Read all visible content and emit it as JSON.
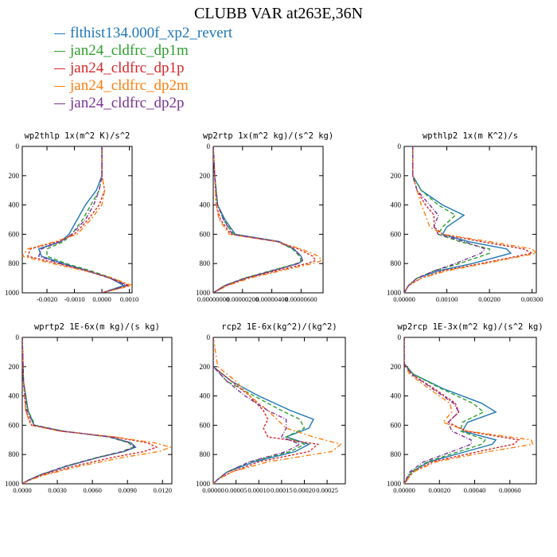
{
  "title": "CLUBB VAR at263E,36N",
  "legend": [
    {
      "name": "flthist134.000f_xp2_revert",
      "color": "#1f77b4"
    },
    {
      "name": "jan24_cldfrc_dp1m",
      "color": "#2ca02c"
    },
    {
      "name": "jan24_cldfrc_dp1p",
      "color": "#d62728"
    },
    {
      "name": "jan24_cldfrc_dp2m",
      "color": "#ff7f0e"
    },
    {
      "name": "jan24_cldfrc_dp2p",
      "color": "#7b3294"
    }
  ],
  "chart_data": [
    {
      "type": "line",
      "title": "wp2thlp  1x(m^2 K)/s^2",
      "xlim": [
        -0.0029,
        0.0011
      ],
      "ylim": [
        1000,
        0
      ],
      "y_inverted": true,
      "xticks": [
        -0.002,
        -0.001,
        0.0,
        0.001
      ],
      "xtick_labels": [
        "-0.0020",
        "-0.0010",
        "0.0000",
        "0.0010"
      ],
      "yticks": [
        0,
        200,
        400,
        600,
        800,
        1000
      ],
      "ytick_labels": [
        "0",
        "200",
        "400",
        "600",
        "800",
        "1000"
      ],
      "y": [
        0,
        200,
        300,
        400,
        500,
        600,
        650,
        700,
        750,
        800,
        850,
        900,
        950,
        1000
      ],
      "series": [
        {
          "name": "flthist134.000f_xp2_revert",
          "values": [
            0,
            0,
            -0.0002,
            -0.0006,
            -0.0009,
            -0.0012,
            -0.0015,
            -0.0023,
            -0.0022,
            -0.0014,
            -0.0005,
            0.0003,
            0.0008,
            0.0
          ]
        },
        {
          "name": "jan24_cldfrc_dp1m",
          "values": [
            0,
            0,
            -0.0001,
            -0.0004,
            -0.0007,
            -0.0011,
            -0.0014,
            -0.002,
            -0.002,
            -0.0013,
            -0.0004,
            0.0004,
            0.0009,
            0.0
          ]
        },
        {
          "name": "jan24_cldfrc_dp1p",
          "values": [
            0,
            0,
            0.0001,
            -0.0001,
            -0.0005,
            -0.001,
            -0.0016,
            -0.0026,
            -0.0027,
            -0.0016,
            -0.0006,
            0.0003,
            0.001,
            0.0
          ]
        },
        {
          "name": "jan24_cldfrc_dp2m",
          "values": [
            0,
            0,
            0.0001,
            0.0,
            -0.0004,
            -0.0009,
            -0.0017,
            -0.0027,
            -0.0029,
            -0.0018,
            -0.0006,
            0.0004,
            0.0011,
            0.0
          ]
        },
        {
          "name": "jan24_cldfrc_dp2p",
          "values": [
            0,
            0,
            -0.0001,
            -0.0003,
            -0.0006,
            -0.0011,
            -0.0015,
            -0.0022,
            -0.0023,
            -0.0015,
            -0.0005,
            0.0003,
            0.0009,
            0.0
          ]
        }
      ]
    },
    {
      "type": "line",
      "title": "wp2rtp  1x(m^2 kg)/(s^2 kg)",
      "xlim": [
        0,
        7.5e-06
      ],
      "ylim": [
        1000,
        0
      ],
      "y_inverted": true,
      "xticks": [
        0,
        2e-06,
        4e-06,
        6e-06
      ],
      "xtick_labels": [
        "0.00000000",
        "0.00000200",
        "0.00000400",
        "0.00000600"
      ],
      "yticks": [
        0,
        200,
        400,
        600,
        800,
        1000
      ],
      "ytick_labels": [
        "0",
        "200",
        "400",
        "600",
        "800",
        "1000"
      ],
      "y": [
        0,
        200,
        400,
        500,
        600,
        650,
        700,
        750,
        780,
        800,
        850,
        900,
        950,
        1000
      ],
      "series": [
        {
          "name": "flthist134.000f_xp2_revert",
          "values": [
            0,
            1e-07,
            3e-07,
            8e-07,
            1.5e-06,
            4.5e-06,
            5.5e-06,
            6e-06,
            6.1e-06,
            5.8e-06,
            4e-06,
            2.2e-06,
            8e-07,
            0.0
          ]
        },
        {
          "name": "jan24_cldfrc_dp1m",
          "values": [
            0,
            1e-07,
            3e-07,
            7e-07,
            1.4e-06,
            4.4e-06,
            5.4e-06,
            5.9e-06,
            6e-06,
            5.7e-06,
            3.9e-06,
            2.1e-06,
            8e-07,
            0.0
          ]
        },
        {
          "name": "jan24_cldfrc_dp1p",
          "values": [
            0,
            1e-07,
            2e-07,
            5e-07,
            1.2e-06,
            4.4e-06,
            5.8e-06,
            6.8e-06,
            7e-06,
            6.4e-06,
            4.3e-06,
            2.3e-06,
            9e-07,
            0.0
          ]
        },
        {
          "name": "jan24_cldfrc_dp2m",
          "values": [
            0,
            1e-07,
            2e-07,
            4e-07,
            1.1e-06,
            4.3e-06,
            6e-06,
            7.2e-06,
            7.4e-06,
            6.8e-06,
            4.6e-06,
            2.5e-06,
            1e-06,
            0.0
          ]
        },
        {
          "name": "jan24_cldfrc_dp2p",
          "values": [
            0,
            1e-07,
            3e-07,
            7e-07,
            1.3e-06,
            4.4e-06,
            5.5e-06,
            6e-06,
            6.1e-06,
            5.8e-06,
            4e-06,
            2.2e-06,
            8e-07,
            0.0
          ]
        }
      ]
    },
    {
      "type": "line",
      "title": "wpthlp2  1x(m K^2)/s",
      "xlim": [
        0,
        0.0031
      ],
      "ylim": [
        1000,
        0
      ],
      "y_inverted": true,
      "xticks": [
        0,
        0.001,
        0.002,
        0.003
      ],
      "xtick_labels": [
        "0.00000",
        "0.00100",
        "0.00200",
        "0.00300"
      ],
      "yticks": [
        0,
        200,
        400,
        600,
        800,
        1000
      ],
      "ytick_labels": [
        "0",
        "200",
        "400",
        "600",
        "800",
        "1000"
      ],
      "y": [
        0,
        200,
        300,
        400,
        470,
        550,
        600,
        650,
        700,
        730,
        800,
        850,
        900,
        950,
        1000
      ],
      "series": [
        {
          "name": "flthist134.000f_xp2_revert",
          "values": [
            0.0002,
            0.0002,
            0.0004,
            0.0009,
            0.0014,
            0.001,
            0.0009,
            0.0015,
            0.0024,
            0.0025,
            0.0016,
            0.0008,
            0.0003,
            0.0001,
            0.0
          ]
        },
        {
          "name": "jan24_cldfrc_dp1m",
          "values": [
            0.0002,
            0.0002,
            0.0004,
            0.0008,
            0.0012,
            0.0009,
            0.0008,
            0.0013,
            0.002,
            0.002,
            0.0013,
            0.0007,
            0.0003,
            0.0001,
            0.0
          ]
        },
        {
          "name": "jan24_cldfrc_dp1p",
          "values": [
            0.0002,
            0.0002,
            0.0003,
            0.0005,
            0.0007,
            0.0007,
            0.0009,
            0.0018,
            0.0028,
            0.003,
            0.0018,
            0.0009,
            0.0004,
            0.0001,
            0.0
          ]
        },
        {
          "name": "jan24_cldfrc_dp2m",
          "values": [
            0.0002,
            0.0002,
            0.0003,
            0.0004,
            0.0005,
            0.0006,
            0.0009,
            0.002,
            0.003,
            0.0031,
            0.0019,
            0.001,
            0.0004,
            0.0001,
            0.0
          ]
        },
        {
          "name": "jan24_cldfrc_dp2p",
          "values": [
            0.0002,
            0.0002,
            0.0003,
            0.0006,
            0.0008,
            0.0007,
            0.0008,
            0.0014,
            0.0019,
            0.0018,
            0.0012,
            0.0007,
            0.0003,
            0.0001,
            0.0
          ]
        }
      ]
    },
    {
      "type": "line",
      "title": "wprtp2  1E-6x(m kg)/(s kg)",
      "xlim": [
        0,
        0.0128
      ],
      "ylim": [
        1000,
        0
      ],
      "y_inverted": true,
      "xticks": [
        0,
        0.003,
        0.006,
        0.009,
        0.012
      ],
      "xtick_labels": [
        "0.0000",
        "0.0030",
        "0.0060",
        "0.0090",
        "0.0120"
      ],
      "yticks": [
        0,
        200,
        400,
        600,
        800,
        1000
      ],
      "ytick_labels": [
        "0",
        "200",
        "400",
        "600",
        "800",
        "1000"
      ],
      "y": [
        0,
        300,
        500,
        600,
        640,
        680,
        720,
        750,
        780,
        820,
        880,
        940,
        980,
        1000
      ],
      "series": [
        {
          "name": "flthist134.000f_xp2_revert",
          "values": [
            0,
            0.0001,
            0.0005,
            0.001,
            0.0035,
            0.0075,
            0.0093,
            0.0097,
            0.0087,
            0.0065,
            0.0038,
            0.0015,
            0.0004,
            0.0
          ]
        },
        {
          "name": "jan24_cldfrc_dp1m",
          "values": [
            0,
            0.0001,
            0.0005,
            0.0011,
            0.0035,
            0.0074,
            0.0091,
            0.0095,
            0.0085,
            0.0064,
            0.0037,
            0.0015,
            0.0004,
            0.0
          ]
        },
        {
          "name": "jan24_cldfrc_dp1p",
          "values": [
            0,
            0.0001,
            0.0003,
            0.0008,
            0.0033,
            0.0078,
            0.0107,
            0.0115,
            0.0104,
            0.0077,
            0.0044,
            0.0017,
            0.0005,
            0.0
          ]
        },
        {
          "name": "jan24_cldfrc_dp2m",
          "values": [
            0,
            0.0001,
            0.0003,
            0.0007,
            0.0032,
            0.0079,
            0.0113,
            0.0127,
            0.0117,
            0.0086,
            0.0049,
            0.0019,
            0.0005,
            0.0
          ]
        },
        {
          "name": "jan24_cldfrc_dp2p",
          "values": [
            0,
            0.0001,
            0.0004,
            0.001,
            0.0034,
            0.0075,
            0.0092,
            0.0096,
            0.0086,
            0.0065,
            0.0037,
            0.0015,
            0.0004,
            0.0
          ]
        }
      ]
    },
    {
      "type": "line",
      "title": "rcp2  1E-6x(kg^2)/(kg^2)",
      "xlim": [
        0,
        0.00029
      ],
      "ylim": [
        1000,
        0
      ],
      "y_inverted": true,
      "xticks": [
        0,
        5e-05,
        0.0001,
        0.00015,
        0.0002,
        0.00025
      ],
      "xtick_labels": [
        "0.00000",
        "0.00005",
        "0.00010",
        "0.00015",
        "0.00020",
        "0.00025"
      ],
      "yticks": [
        0,
        200,
        400,
        600,
        800,
        1000
      ],
      "ytick_labels": [
        "0",
        "200",
        "400",
        "600",
        "800",
        "1000"
      ],
      "y": [
        0,
        200,
        300,
        400,
        500,
        560,
        620,
        680,
        730,
        780,
        850,
        920,
        970,
        1000
      ],
      "series": [
        {
          "name": "flthist134.000f_xp2_revert",
          "values": [
            0,
            0.0,
            4e-05,
            0.0001,
            0.00017,
            0.00022,
            0.00021,
            0.00016,
            0.00021,
            0.00018,
            9e-05,
            3e-05,
            1e-05,
            0.0
          ]
        },
        {
          "name": "jan24_cldfrc_dp1m",
          "values": [
            0,
            0.0,
            3e-05,
            9e-05,
            0.00015,
            0.00019,
            0.0002,
            0.00016,
            0.0002,
            0.00017,
            8e-05,
            3e-05,
            1e-05,
            0.0
          ]
        },
        {
          "name": "jan24_cldfrc_dp1p",
          "values": [
            0,
            0.0,
            4e-05,
            8e-05,
            0.00011,
            0.00012,
            0.00011,
            0.00012,
            0.00023,
            0.00021,
            0.0001,
            4e-05,
            1e-05,
            0.0
          ]
        },
        {
          "name": "jan24_cldfrc_dp2m",
          "values": [
            0,
            1e-05,
            5e-05,
            8e-05,
            0.00012,
            0.00014,
            0.00016,
            0.00022,
            0.00028,
            0.00026,
            0.00012,
            4e-05,
            1e-05,
            0.0
          ]
        },
        {
          "name": "jan24_cldfrc_dp2p",
          "values": [
            0,
            0.0,
            3e-05,
            7e-05,
            0.00012,
            0.00016,
            0.00016,
            0.00015,
            0.00019,
            0.00016,
            8e-05,
            3e-05,
            1e-05,
            0.0
          ]
        }
      ]
    },
    {
      "type": "line",
      "title": "wp2rcp  1E-3x(m^2 kg)/(s^2 kg)",
      "xlim": [
        0,
        0.00075
      ],
      "ylim": [
        1000,
        0
      ],
      "y_inverted": true,
      "xticks": [
        0,
        0.0002,
        0.0004,
        0.0006
      ],
      "xtick_labels": [
        "0.00000",
        "0.00020",
        "0.00040",
        "0.00060"
      ],
      "yticks": [
        0,
        200,
        400,
        600,
        800,
        1000
      ],
      "ytick_labels": [
        "0",
        "200",
        "400",
        "600",
        "800",
        "1000"
      ],
      "y": [
        0,
        180,
        250,
        350,
        450,
        510,
        580,
        640,
        700,
        730,
        780,
        850,
        920,
        1000
      ],
      "series": [
        {
          "name": "flthist134.000f_xp2_revert",
          "values": [
            0,
            0.0,
            5e-05,
            0.00022,
            0.00044,
            0.00052,
            0.00036,
            0.00033,
            0.00052,
            0.0005,
            0.00035,
            0.00014,
            4e-05,
            0.0
          ]
        },
        {
          "name": "jan24_cldfrc_dp1m",
          "values": [
            0,
            0.0,
            5e-05,
            0.00021,
            0.00039,
            0.00045,
            0.00033,
            0.00032,
            0.00046,
            0.00044,
            0.00031,
            0.00013,
            4e-05,
            0.0
          ]
        },
        {
          "name": "jan24_cldfrc_dp1p",
          "values": [
            0,
            0.0,
            4e-05,
            0.00017,
            0.00029,
            0.00031,
            0.00025,
            0.00035,
            0.00065,
            0.00062,
            0.00042,
            0.00016,
            5e-05,
            0.0
          ]
        },
        {
          "name": "jan24_cldfrc_dp2m",
          "values": [
            0,
            0.0,
            3e-05,
            0.00014,
            0.00026,
            0.00027,
            0.00022,
            0.00036,
            0.00072,
            0.00073,
            0.00048,
            0.00018,
            5e-05,
            0.0
          ]
        },
        {
          "name": "jan24_cldfrc_dp2p",
          "values": [
            0,
            0.0,
            4e-05,
            0.00016,
            0.00028,
            0.00031,
            0.00025,
            0.00027,
            0.00038,
            0.00038,
            0.00027,
            0.00011,
            3e-05,
            0.0
          ]
        }
      ]
    }
  ]
}
